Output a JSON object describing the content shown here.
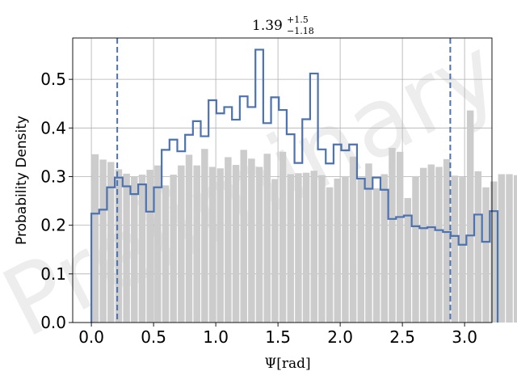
{
  "chart_data": {
    "type": "bar",
    "title": {
      "value": "1.39",
      "upper": "+1.5",
      "lower": "−1.18"
    },
    "xlabel": "Ψ[rad]",
    "ylabel": "Probability Density",
    "xlim": [
      -0.15,
      3.22
    ],
    "ylim": [
      0,
      0.585
    ],
    "xticks": [
      0.0,
      0.5,
      1.0,
      1.5,
      2.0,
      2.5,
      3.0
    ],
    "xtick_labels": [
      "0.0",
      "0.5",
      "1.0",
      "1.5",
      "2.0",
      "2.5",
      "3.0"
    ],
    "yticks": [
      0.0,
      0.1,
      0.2,
      0.3,
      0.4,
      0.5
    ],
    "ytick_labels": [
      "0.0",
      "0.1",
      "0.2",
      "0.3",
      "0.4",
      "0.5"
    ],
    "grid": true,
    "watermark": "Preliminary",
    "colors": {
      "prior": "#cccccc",
      "posterior": "#4c72b0",
      "grid": "#b0b0b0"
    },
    "prior_bars": {
      "bin_start": 0.0,
      "bin_width": 0.0628,
      "values": [
        0.346,
        0.335,
        0.33,
        0.315,
        0.306,
        0.3,
        0.304,
        0.314,
        0.323,
        0.282,
        0.304,
        0.323,
        0.345,
        0.323,
        0.357,
        0.32,
        0.317,
        0.34,
        0.324,
        0.355,
        0.337,
        0.32,
        0.347,
        0.295,
        0.351,
        0.305,
        0.307,
        0.308,
        0.312,
        0.303,
        0.278,
        0.296,
        0.301,
        0.341,
        0.296,
        0.327,
        0.276,
        0.305,
        0.359,
        0.351,
        0.256,
        0.301,
        0.318,
        0.325,
        0.32,
        0.336,
        0.302,
        0.299,
        0.436,
        0.311,
        0.278,
        0.29,
        0.305,
        0.305,
        0.303
      ]
    },
    "posterior_step": {
      "bin_start": 0.0,
      "bin_width": 0.0628,
      "values": [
        0.224,
        0.232,
        0.278,
        0.298,
        0.28,
        0.264,
        0.284,
        0.228,
        0.278,
        0.355,
        0.376,
        0.352,
        0.386,
        0.414,
        0.383,
        0.457,
        0.43,
        0.443,
        0.417,
        0.465,
        0.443,
        0.561,
        0.41,
        0.463,
        0.437,
        0.387,
        0.328,
        0.418,
        0.512,
        0.356,
        0.327,
        0.366,
        0.354,
        0.366,
        0.296,
        0.275,
        0.298,
        0.273,
        0.213,
        0.217,
        0.22,
        0.198,
        0.194,
        0.196,
        0.19,
        0.186,
        0.178,
        0.16,
        0.179,
        0.222,
        0.166,
        0.229
      ]
    },
    "credible_interval_lines": [
      0.208,
      2.885
    ]
  }
}
